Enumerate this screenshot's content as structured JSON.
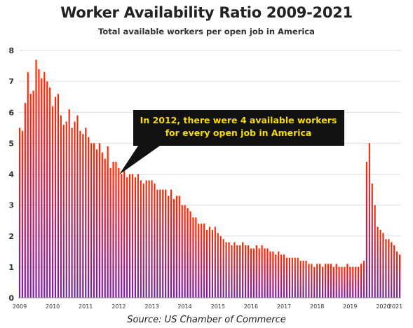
{
  "chart_data": {
    "type": "bar",
    "title": "Worker Availability Ratio 2009-2021",
    "subtitle": "Total available workers per open job in America",
    "ylim": [
      0,
      8
    ],
    "y_ticks": [
      "0",
      "1",
      "2",
      "3",
      "4",
      "5",
      "6",
      "7",
      "8"
    ],
    "x_tick_labels": [
      "2009",
      "2010",
      "2011",
      "2012",
      "2013",
      "2014",
      "2015",
      "2016",
      "2017",
      "2018",
      "2019",
      "2020",
      "2021"
    ],
    "grid": true,
    "bar_gradient": {
      "top": "#ff2a00",
      "bottom": "#7b1fa2"
    },
    "start_month": "2009-01",
    "values": [
      5.5,
      5.4,
      6.3,
      7.3,
      6.6,
      6.7,
      7.7,
      7.4,
      7.1,
      7.3,
      7.0,
      6.8,
      6.2,
      6.5,
      6.6,
      5.9,
      5.6,
      5.7,
      6.1,
      5.5,
      5.7,
      5.9,
      5.4,
      5.3,
      5.5,
      5.2,
      5.0,
      5.0,
      4.8,
      5.0,
      4.7,
      4.5,
      4.9,
      4.2,
      4.4,
      4.4,
      4.2,
      4.0,
      4.2,
      3.9,
      4.0,
      4.0,
      3.9,
      4.0,
      3.8,
      3.7,
      3.8,
      3.8,
      3.8,
      3.7,
      3.5,
      3.5,
      3.5,
      3.5,
      3.3,
      3.5,
      3.2,
      3.3,
      3.3,
      3.0,
      3.0,
      2.9,
      2.8,
      2.6,
      2.6,
      2.4,
      2.4,
      2.4,
      2.2,
      2.3,
      2.2,
      2.3,
      2.1,
      2.0,
      1.9,
      1.8,
      1.8,
      1.7,
      1.8,
      1.7,
      1.7,
      1.8,
      1.7,
      1.7,
      1.6,
      1.6,
      1.7,
      1.6,
      1.7,
      1.6,
      1.6,
      1.5,
      1.5,
      1.4,
      1.5,
      1.4,
      1.4,
      1.3,
      1.3,
      1.3,
      1.3,
      1.3,
      1.2,
      1.2,
      1.2,
      1.1,
      1.1,
      1.0,
      1.1,
      1.1,
      1.0,
      1.1,
      1.1,
      1.1,
      1.0,
      1.1,
      1.0,
      1.0,
      1.0,
      1.1,
      1.0,
      1.0,
      1.0,
      1.0,
      1.1,
      1.2,
      4.4,
      5.0,
      3.7,
      3.0,
      2.3,
      2.2,
      2.1,
      1.9,
      1.9,
      1.8,
      1.7,
      1.5,
      1.4
    ]
  },
  "annotation": {
    "line1": "In 2012, there were 4 available workers",
    "line2": "for every open job in America"
  },
  "source": "Source: US Chamber of Commerce"
}
